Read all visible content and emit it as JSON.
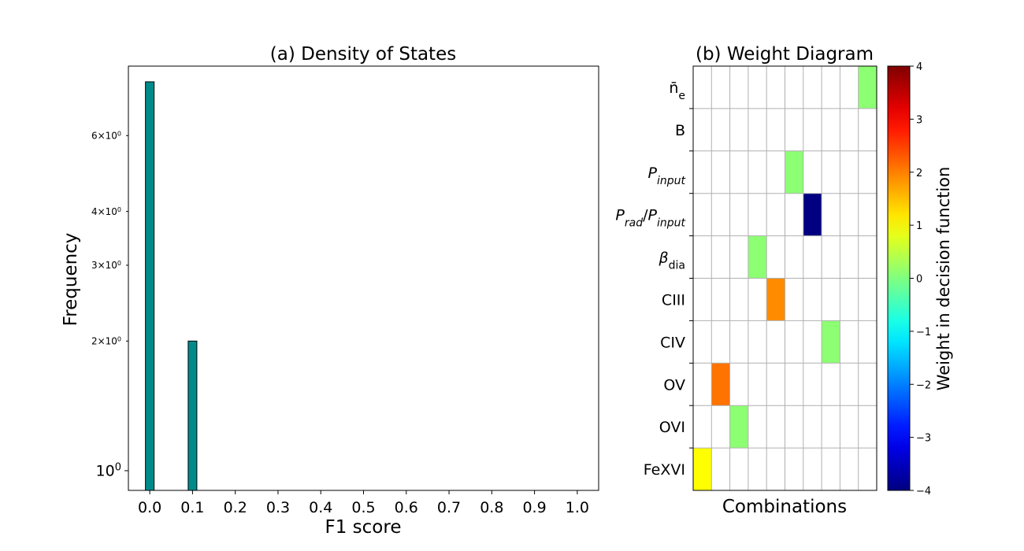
{
  "chart_data": [
    {
      "type": "bar",
      "title": "(a) Density of States",
      "xlabel": "F1 score",
      "ylabel": "Frequency",
      "x_ticks": [
        "0.0",
        "0.1",
        "0.2",
        "0.3",
        "0.4",
        "0.5",
        "0.6",
        "0.7",
        "0.8",
        "0.9",
        "1.0"
      ],
      "x_tick_values": [
        0.0,
        0.1,
        0.2,
        0.3,
        0.4,
        0.5,
        0.6,
        0.7,
        0.8,
        0.9,
        1.0
      ],
      "xlim": [
        -0.05,
        1.05
      ],
      "yscale": "log",
      "ylim": [
        0.9,
        8.7
      ],
      "y_ticks": [
        {
          "value": 1,
          "base": "10",
          "exp": "0",
          "major": true
        },
        {
          "value": 2,
          "base": "2×10",
          "exp": "0",
          "major": false
        },
        {
          "value": 3,
          "base": "3×10",
          "exp": "0",
          "major": false
        },
        {
          "value": 4,
          "base": "4×10",
          "exp": "0",
          "major": false
        },
        {
          "value": 6,
          "base": "6×10",
          "exp": "0",
          "major": false
        }
      ],
      "bars": [
        {
          "x": 0.0,
          "value": 8
        },
        {
          "x": 0.1,
          "value": 2
        }
      ],
      "bar_color": "#008b8b",
      "bar_edge": "#000000",
      "grid": false
    },
    {
      "type": "heatmap",
      "title": "(b) Weight Diagram",
      "xlabel": "Combinations",
      "rows": [
        {
          "main": "n̄",
          "sub": "e"
        },
        {
          "main": "B"
        },
        {
          "main": "P",
          "sub": "input",
          "italic": true
        },
        {
          "main": "P",
          "sub": "rad",
          "mid": "/",
          "main2": "P",
          "sub2": "input",
          "italic": true
        },
        {
          "main": "β",
          "sub": "dia",
          "italic_main": true
        },
        {
          "main": "CIII"
        },
        {
          "main": "CIV"
        },
        {
          "main": "OV"
        },
        {
          "main": "OVI"
        },
        {
          "main": "FeXVI"
        }
      ],
      "n_columns": 10,
      "cells": [
        {
          "row": 0,
          "col": 9,
          "value": 0.1
        },
        {
          "row": 2,
          "col": 5,
          "value": 0.1
        },
        {
          "row": 3,
          "col": 6,
          "value": -4.0
        },
        {
          "row": 4,
          "col": 3,
          "value": 0.1
        },
        {
          "row": 5,
          "col": 4,
          "value": 1.9
        },
        {
          "row": 6,
          "col": 7,
          "value": 0.1
        },
        {
          "row": 7,
          "col": 1,
          "value": 2.1
        },
        {
          "row": 8,
          "col": 2,
          "value": 0.1
        },
        {
          "row": 9,
          "col": 0,
          "value": 1.0
        }
      ],
      "grid": true,
      "colorbar": {
        "label": "Weight in decision function",
        "colormap": "jet",
        "vmin": -4,
        "vmax": 4,
        "ticks": [
          "−4",
          "−3",
          "−2",
          "−1",
          "0",
          "1",
          "2",
          "3",
          "4"
        ],
        "tick_values": [
          -4,
          -3,
          -2,
          -1,
          0,
          1,
          2,
          3,
          4
        ]
      }
    }
  ]
}
